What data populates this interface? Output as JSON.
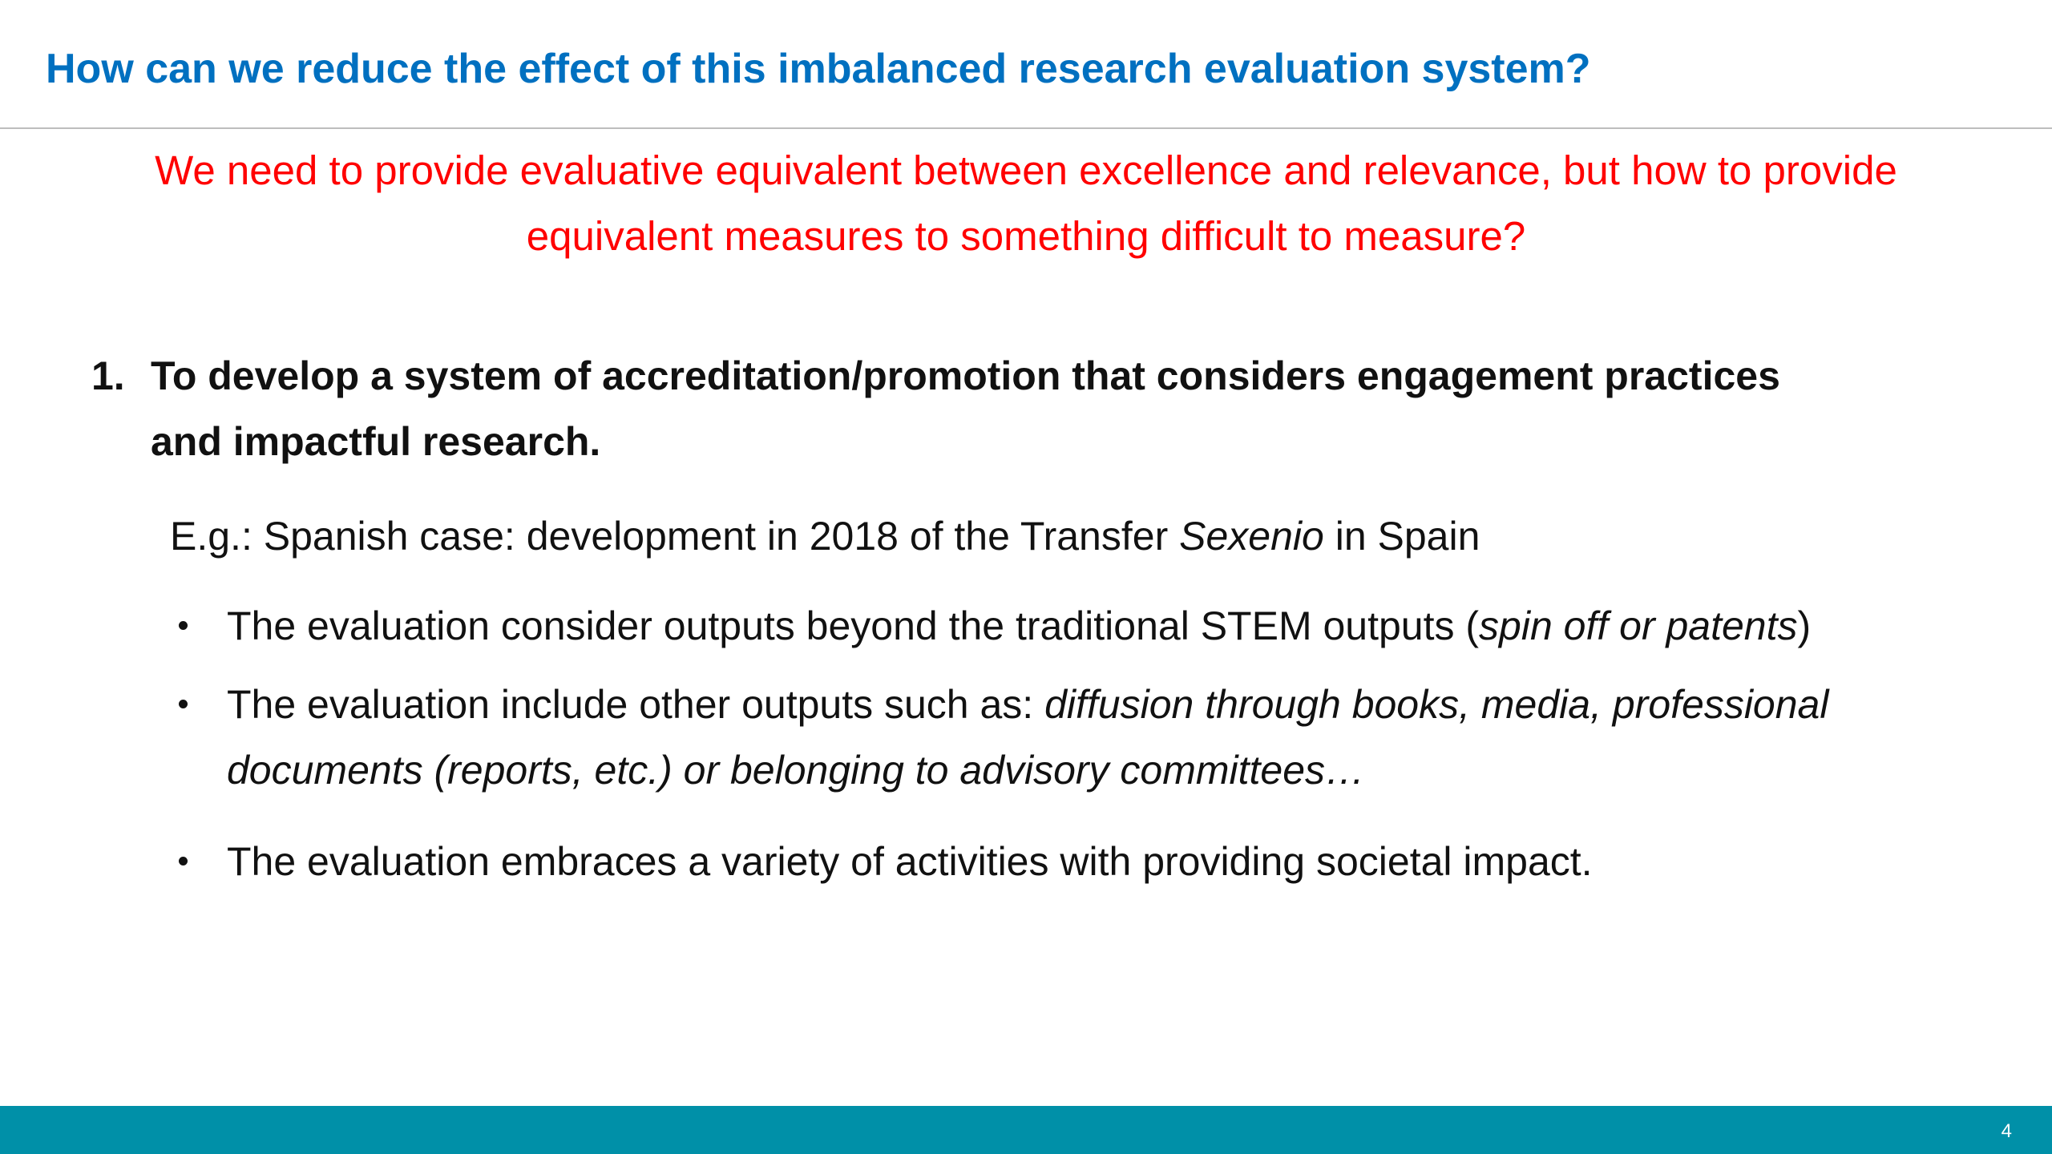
{
  "title": "How can we reduce the effect of this imbalanced research evaluation system?",
  "subtitle": "We need to provide evaluative equivalent between excellence and relevance, but how to provide equivalent measures to something difficult to measure?",
  "point": {
    "number": "1.",
    "text": "To develop a system of accreditation/promotion that considers engagement practices and impactful research."
  },
  "example": [
    {
      "text": "E.g.: Spanish case: development in 2018 of the Transfer "
    },
    {
      "text": "Sexenio",
      "italic": true
    },
    {
      "text": " in Spain"
    }
  ],
  "bullets": [
    [
      {
        "text": "The evaluation consider outputs beyond the traditional STEM outputs ("
      },
      {
        "text": "spin off or patents",
        "italic": true
      },
      {
        "text": ")"
      }
    ],
    [
      {
        "text": "The evaluation include other outputs such as: "
      },
      {
        "text": "diffusion through books, media, professional documents (reports, etc.) or belonging to advisory committees…",
        "italic": true
      }
    ],
    [
      {
        "text": "The evaluation embraces a variety of activities with providing societal impact."
      }
    ]
  ],
  "page_number": "4"
}
